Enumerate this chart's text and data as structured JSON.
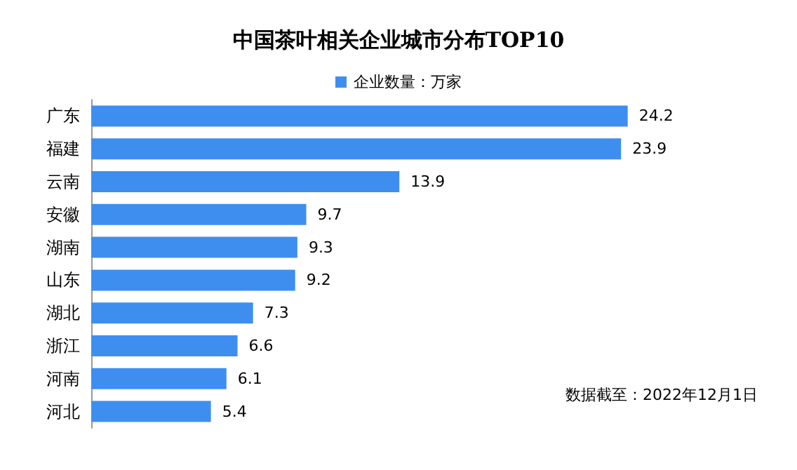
{
  "chart_data": {
    "type": "bar",
    "orientation": "horizontal",
    "title": "中国茶叶相关企业城市分布TOP10",
    "categories": [
      "广东",
      "福建",
      "云南",
      "安徽",
      "湖南",
      "山东",
      "湖北",
      "浙江",
      "河南",
      "河北"
    ],
    "series": [
      {
        "name": "企业数量：万家",
        "color": "#3e8ef0",
        "values": [
          24.2,
          23.9,
          13.9,
          9.7,
          9.3,
          9.2,
          7.3,
          6.6,
          6.1,
          5.4
        ]
      }
    ],
    "data_labels": true,
    "legend": "top",
    "grid": false,
    "annotations": [
      "数据截至：2022年12月1日"
    ]
  }
}
